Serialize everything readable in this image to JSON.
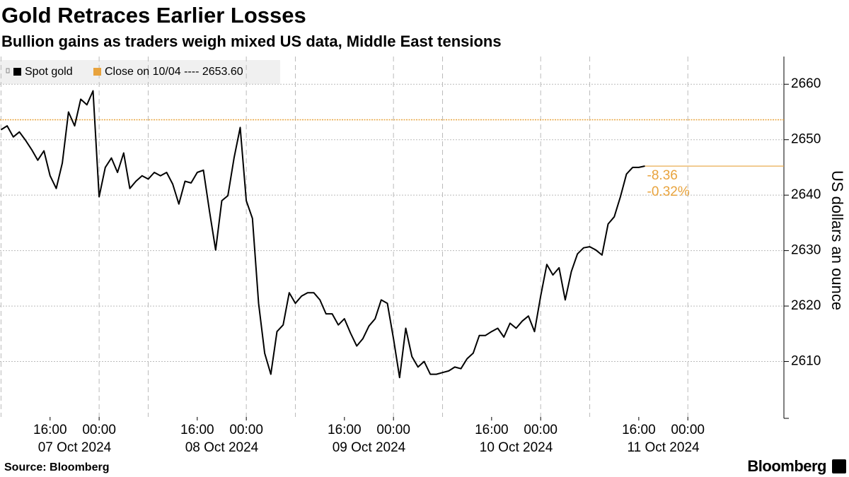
{
  "chart_data": {
    "type": "line",
    "title": "Gold Retraces Earlier Losses",
    "subtitle": "Bullion gains as traders weigh mixed US data, Middle East tensions",
    "y_axis_label": "US dollars an ounce",
    "source": "Source: Bloomberg",
    "brand": "Bloomberg",
    "ylim": [
      2600,
      2665
    ],
    "yticks": [
      2610,
      2620,
      2630,
      2640,
      2650,
      2660
    ],
    "xlim": [
      "2024-10-07 07:50",
      "2024-10-12 15:40"
    ],
    "xticks": [
      {
        "value": "2024-10-07 16:00",
        "label": "16:00"
      },
      {
        "value": "2024-10-08 00:00",
        "label": "00:00"
      },
      {
        "value": "2024-10-08 16:00",
        "label": "16:00"
      },
      {
        "value": "2024-10-09 00:00",
        "label": "00:00"
      },
      {
        "value": "2024-10-09 16:00",
        "label": "16:00"
      },
      {
        "value": "2024-10-10 00:00",
        "label": "00:00"
      },
      {
        "value": "2024-10-10 16:00",
        "label": "16:00"
      },
      {
        "value": "2024-10-11 00:00",
        "label": "00:00"
      },
      {
        "value": "2024-10-11 16:00",
        "label": "16:00"
      },
      {
        "value": "2024-10-12 00:00",
        "label": "00:00"
      }
    ],
    "xtick_groups": [
      "07 Oct 2024",
      "08 Oct 2024",
      "09 Oct 2024",
      "10 Oct 2024",
      "11 Oct 2024"
    ],
    "xgrid": [
      "2024-10-07 08:00",
      "2024-10-08 00:00",
      "2024-10-08 08:00",
      "2024-10-09 00:00",
      "2024-10-09 08:00",
      "2024-10-10 00:00",
      "2024-10-10 08:00",
      "2024-10-11 00:00",
      "2024-10-11 08:00",
      "2024-10-12 00:00"
    ],
    "grid": true,
    "legend": "top-left",
    "x": [
      "2024-10-07 08:00",
      "2024-10-07 09:00",
      "2024-10-07 10:00",
      "2024-10-07 11:00",
      "2024-10-07 12:00",
      "2024-10-07 13:00",
      "2024-10-07 14:00",
      "2024-10-07 15:00",
      "2024-10-07 16:00",
      "2024-10-07 17:00",
      "2024-10-07 18:00",
      "2024-10-07 19:00",
      "2024-10-07 20:00",
      "2024-10-07 21:00",
      "2024-10-07 22:00",
      "2024-10-07 23:00",
      "2024-10-08 00:00",
      "2024-10-08 01:00",
      "2024-10-08 02:00",
      "2024-10-08 03:00",
      "2024-10-08 04:00",
      "2024-10-08 05:00",
      "2024-10-08 06:00",
      "2024-10-08 07:00",
      "2024-10-08 08:00",
      "2024-10-08 09:00",
      "2024-10-08 10:00",
      "2024-10-08 11:00",
      "2024-10-08 12:00",
      "2024-10-08 13:00",
      "2024-10-08 14:00",
      "2024-10-08 15:00",
      "2024-10-08 16:00",
      "2024-10-08 17:00",
      "2024-10-08 18:00",
      "2024-10-08 19:00",
      "2024-10-08 20:00",
      "2024-10-08 21:00",
      "2024-10-08 22:00",
      "2024-10-08 23:00",
      "2024-10-09 00:00",
      "2024-10-09 01:00",
      "2024-10-09 02:00",
      "2024-10-09 03:00",
      "2024-10-09 04:00",
      "2024-10-09 05:00",
      "2024-10-09 06:00",
      "2024-10-09 07:00",
      "2024-10-09 08:00",
      "2024-10-09 09:00",
      "2024-10-09 10:00",
      "2024-10-09 11:00",
      "2024-10-09 12:00",
      "2024-10-09 13:00",
      "2024-10-09 14:00",
      "2024-10-09 15:00",
      "2024-10-09 16:00",
      "2024-10-09 17:00",
      "2024-10-09 18:00",
      "2024-10-09 19:00",
      "2024-10-09 20:00",
      "2024-10-09 21:00",
      "2024-10-09 22:00",
      "2024-10-09 23:00",
      "2024-10-10 00:00",
      "2024-10-10 01:00",
      "2024-10-10 02:00",
      "2024-10-10 03:00",
      "2024-10-10 04:00",
      "2024-10-10 05:00",
      "2024-10-10 06:00",
      "2024-10-10 07:00",
      "2024-10-10 08:00",
      "2024-10-10 09:00",
      "2024-10-10 10:00",
      "2024-10-10 11:00",
      "2024-10-10 12:00",
      "2024-10-10 13:00",
      "2024-10-10 14:00",
      "2024-10-10 15:00",
      "2024-10-10 16:00",
      "2024-10-10 17:00",
      "2024-10-10 18:00",
      "2024-10-10 19:00",
      "2024-10-10 20:00",
      "2024-10-10 21:00",
      "2024-10-10 22:00",
      "2024-10-10 23:00",
      "2024-10-11 00:00",
      "2024-10-11 01:00",
      "2024-10-11 02:00",
      "2024-10-11 03:00",
      "2024-10-11 04:00",
      "2024-10-11 05:00",
      "2024-10-11 06:00",
      "2024-10-11 07:00",
      "2024-10-11 08:00",
      "2024-10-11 09:00",
      "2024-10-11 10:00",
      "2024-10-11 11:00",
      "2024-10-11 12:00",
      "2024-10-11 13:00",
      "2024-10-11 14:00",
      "2024-10-11 15:00",
      "2024-10-11 16:00",
      "2024-10-11 17:00"
    ],
    "series": [
      {
        "name": "Spot gold",
        "color": "#000000",
        "values": [
          2651.8,
          2652.5,
          2650.5,
          2651.4,
          2649.9,
          2648.2,
          2646.3,
          2648.0,
          2643.5,
          2641.2,
          2645.8,
          2655.0,
          2652.5,
          2657.3,
          2656.3,
          2658.8,
          2639.7,
          2645.0,
          2646.7,
          2644.1,
          2647.6,
          2641.2,
          2642.5,
          2643.5,
          2642.9,
          2644.1,
          2643.5,
          2644.1,
          2642.0,
          2638.4,
          2642.5,
          2642.2,
          2644.1,
          2644.5,
          2637.1,
          2630.1,
          2639.0,
          2639.9,
          2646.7,
          2652.2,
          2639.0,
          2635.8,
          2620.5,
          2611.5,
          2607.7,
          2615.4,
          2616.6,
          2622.4,
          2620.5,
          2621.8,
          2622.4,
          2622.4,
          2621.1,
          2618.6,
          2618.6,
          2616.6,
          2617.7,
          2615.1,
          2612.8,
          2614.1,
          2616.4,
          2617.7,
          2621.1,
          2620.5,
          2614.1,
          2607.1,
          2616.0,
          2610.9,
          2609.0,
          2610.0,
          2607.7,
          2607.7,
          2608.0,
          2608.3,
          2609.0,
          2608.7,
          2610.5,
          2611.5,
          2614.7,
          2614.7,
          2615.4,
          2616.0,
          2614.4,
          2616.9,
          2616.0,
          2617.3,
          2618.2,
          2615.4,
          2621.8,
          2627.5,
          2625.6,
          2626.9,
          2621.1,
          2626.2,
          2629.4,
          2630.5,
          2630.7,
          2630.1,
          2629.2,
          2634.8,
          2636.1,
          2639.7,
          2643.8,
          2645.0,
          2645.0,
          2645.24
        ]
      }
    ],
    "reference": {
      "name": "Close on 10/04 ---- 2653.60",
      "value": 2653.6,
      "color": "#e8a33d"
    },
    "annotations": [
      "-8.36",
      "-0.32%"
    ]
  }
}
